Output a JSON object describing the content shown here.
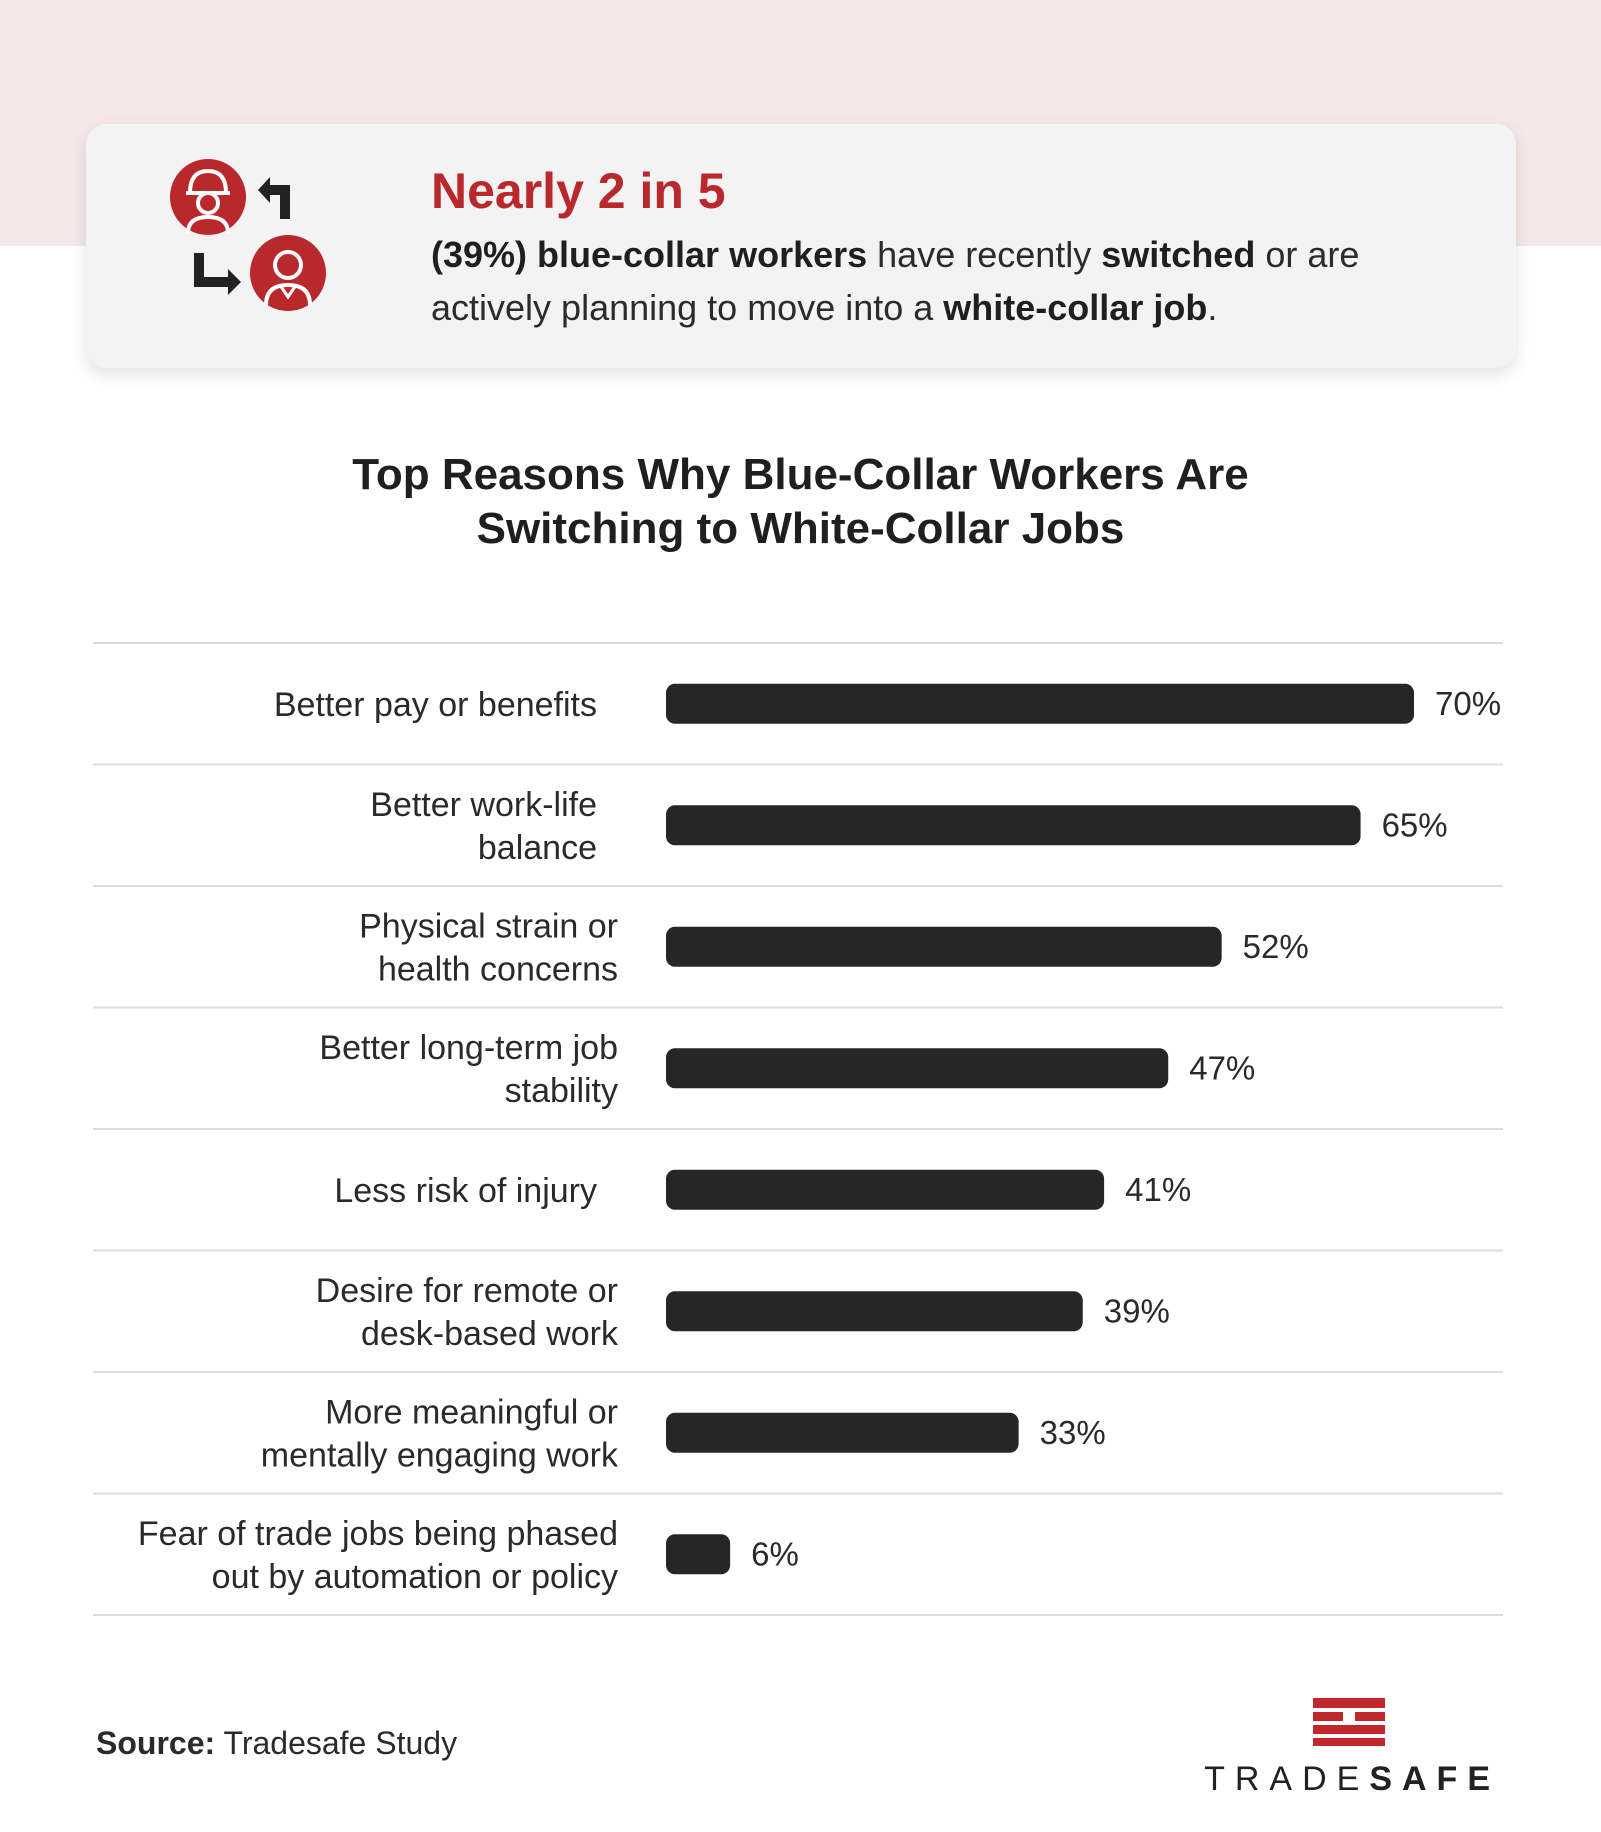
{
  "header": {
    "headline": "Nearly 2 in 5",
    "sub_part1": "(39%) blue-collar workers",
    "sub_part2": " have recently ",
    "sub_part3": "switched",
    "sub_part4": " or are actively planning to move into a ",
    "sub_part5": "white-collar job",
    "sub_part6": ".",
    "icon": "worker-swap-icon",
    "accent_color": "#b8282c"
  },
  "chart_data": {
    "type": "bar",
    "orientation": "horizontal",
    "title": "Top Reasons Why Blue-Collar Workers Are Switching to White-Collar Jobs",
    "title_line1": "Top Reasons Why Blue-Collar Workers Are",
    "title_line2": "Switching to White-Collar Jobs",
    "categories": [
      [
        "Better pay or benefits"
      ],
      [
        "Better work-life",
        "balance"
      ],
      [
        "Physical strain or",
        "health concerns"
      ],
      [
        "Better long-term job",
        "stability"
      ],
      [
        "Less risk of injury"
      ],
      [
        "Desire for remote or",
        "desk-based work"
      ],
      [
        "More meaningful or",
        "mentally engaging work"
      ],
      [
        "Fear of trade jobs being phased",
        "out by automation or policy"
      ]
    ],
    "values": [
      70,
      65,
      52,
      47,
      41,
      39,
      33,
      6
    ],
    "value_labels": [
      "70%",
      "65%",
      "52%",
      "47%",
      "41%",
      "39%",
      "33%",
      "6%"
    ],
    "unit": "%",
    "xlim": [
      0,
      70
    ],
    "bar_color": "#262626",
    "grid": false,
    "legend": "none"
  },
  "footer": {
    "source_label": "Source:",
    "source_text": " Tradesafe Study",
    "brand_light": "TRADE",
    "brand_bold": "SAFE",
    "brand_color": "#c0282c"
  }
}
